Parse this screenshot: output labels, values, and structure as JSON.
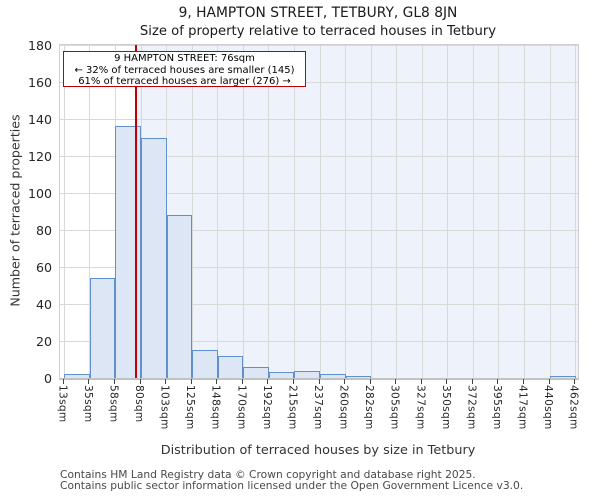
{
  "chart_data": {
    "type": "bar",
    "title": "9, HAMPTON STREET, TETBURY, GL8 8JN",
    "subtitle": "Size of property relative to terraced houses in Tetbury",
    "xlabel": "Distribution of terraced houses by size in Tetbury",
    "ylabel": "Number of terraced properties",
    "categories": [
      "13sqm",
      "35sqm",
      "58sqm",
      "80sqm",
      "103sqm",
      "125sqm",
      "148sqm",
      "170sqm",
      "192sqm",
      "215sqm",
      "237sqm",
      "260sqm",
      "282sqm",
      "305sqm",
      "327sqm",
      "350sqm",
      "372sqm",
      "395sqm",
      "417sqm",
      "440sqm",
      "462sqm"
    ],
    "values": [
      2,
      54,
      136,
      130,
      88,
      15,
      12,
      6,
      3,
      4,
      2,
      1,
      0,
      0,
      0,
      0,
      0,
      0,
      0,
      1
    ],
    "ylim": [
      0,
      180
    ],
    "ytick_step": 20,
    "grid": true,
    "marker": {
      "label": "9 HAMPTON STREET",
      "sqm": 76,
      "axis_min_sqm": 13,
      "axis_max_sqm": 462
    },
    "colors": {
      "bar_fill": "#dce6f5",
      "bar_edge": "#6090ce",
      "marker_line": "#c00000",
      "grid": "#d9d9d9",
      "shade_right": "#eef3fb"
    }
  },
  "annotation": {
    "line1": "9 HAMPTON STREET: 76sqm",
    "line2": "← 32% of terraced houses are smaller (145)",
    "line3": "61% of terraced houses are larger (276) →"
  },
  "footer": {
    "line1": "Contains HM Land Registry data © Crown copyright and database right 2025.",
    "line2": "Contains public sector information licensed under the Open Government Licence v3.0."
  }
}
